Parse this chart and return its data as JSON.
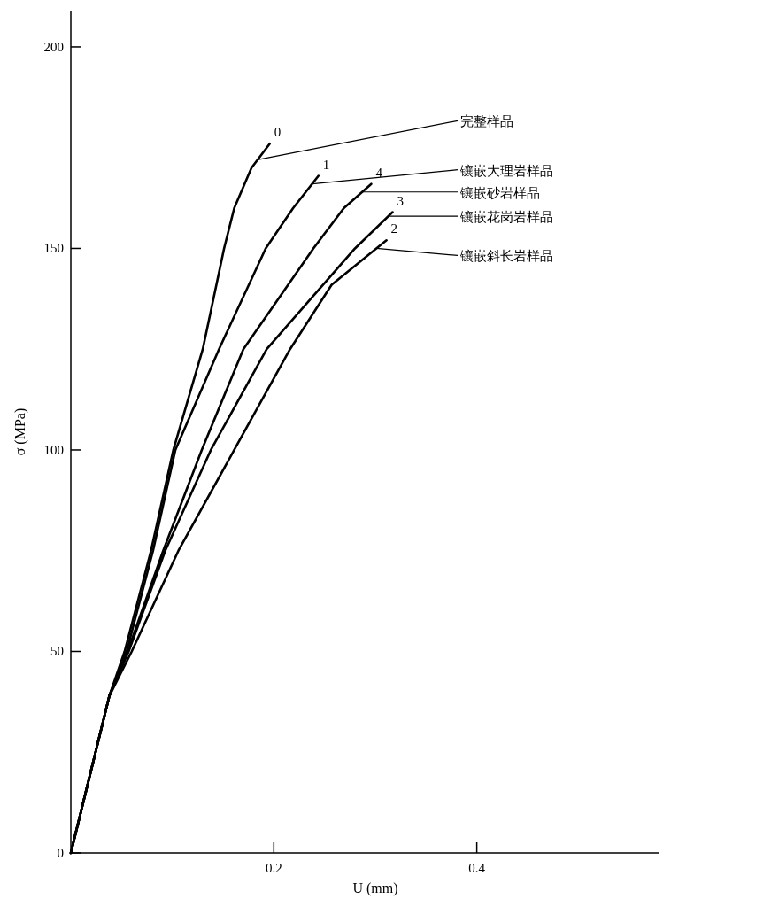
{
  "chart_data": {
    "type": "line",
    "xlabel": "U (mm)",
    "ylabel": "σ (MPa)",
    "xlim": [
      0,
      0.58
    ],
    "ylim": [
      0,
      209
    ],
    "xticks": [
      0.2,
      0.4
    ],
    "yticks": [
      0,
      50,
      100,
      150,
      200
    ],
    "grid": false,
    "legend": false,
    "series": [
      {
        "name": "0",
        "color": "#000000",
        "x": [
          0,
          0.038,
          0.053,
          0.079,
          0.101,
          0.13,
          0.151,
          0.161,
          0.178,
          0.196
        ],
        "values": [
          0,
          39,
          50,
          75,
          100,
          125,
          150,
          160,
          170,
          176
        ]
      },
      {
        "name": "1",
        "color": "#000000",
        "x": [
          0,
          0.038,
          0.055,
          0.081,
          0.103,
          0.146,
          0.192,
          0.219,
          0.244
        ],
        "values": [
          0,
          39,
          50,
          75,
          100,
          125,
          150,
          160,
          168
        ]
      },
      {
        "name": "4",
        "color": "#000000",
        "x": [
          0,
          0.038,
          0.056,
          0.091,
          0.129,
          0.17,
          0.239,
          0.269,
          0.296
        ],
        "values": [
          0,
          39,
          50,
          75,
          100,
          125,
          150,
          160,
          166
        ]
      },
      {
        "name": "3",
        "color": "#000000",
        "x": [
          0,
          0.038,
          0.057,
          0.093,
          0.138,
          0.193,
          0.28,
          0.317
        ],
        "values": [
          0,
          39,
          50,
          75,
          100,
          125,
          150,
          159
        ]
      },
      {
        "name": "2",
        "color": "#000000",
        "x": [
          0,
          0.038,
          0.06,
          0.106,
          0.161,
          0.216,
          0.257,
          0.311
        ],
        "values": [
          0,
          39,
          50,
          75,
          100,
          125,
          141,
          152
        ]
      }
    ],
    "annotations": [
      {
        "text": "完整样品",
        "x": 0.184,
        "y": 172
      },
      {
        "text": "镶嵌大理岩样品",
        "x": 0.238,
        "y": 166
      },
      {
        "text": "镶嵌砂岩样品",
        "x": 0.287,
        "y": 164
      },
      {
        "text": "镶嵌花岗岩样品",
        "x": 0.313,
        "y": 158
      },
      {
        "text": "镶嵌斜长岩样品",
        "x": 0.301,
        "y": 150
      }
    ]
  }
}
